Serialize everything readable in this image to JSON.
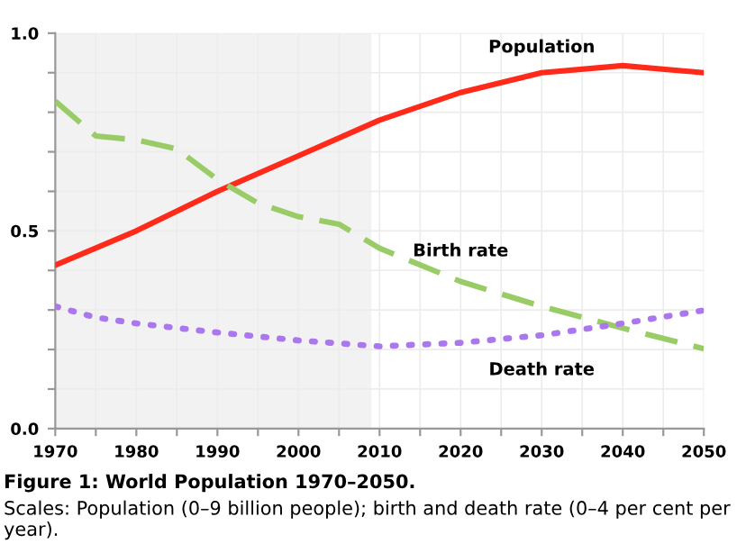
{
  "chart_data": {
    "type": "line",
    "title": "Figure 1: World Population 1970–2050.",
    "subtitle": "Scales: Population (0–9 billion people); birth and death rate (0–4 per cent per year).",
    "relative": false,
    "series": [
      {
        "name": "Population",
        "color": "#ff2a1a",
        "line_style": "solid",
        "x": [
          1970,
          1980,
          1990,
          2000,
          2010,
          2020,
          2030,
          2040,
          2050
        ],
        "values": [
          0.413,
          0.5,
          0.6,
          0.69,
          0.78,
          0.85,
          0.9,
          0.918,
          0.9
        ]
      },
      {
        "name": "Birth rate",
        "color": "#99cc66",
        "line_style": "dashed",
        "x": [
          1970,
          1975,
          1980,
          1985,
          1990,
          1995,
          2000,
          2005,
          2010,
          2020,
          2030,
          2040,
          2050
        ],
        "values": [
          0.828,
          0.74,
          0.73,
          0.707,
          0.63,
          0.57,
          0.536,
          0.517,
          0.456,
          0.372,
          0.309,
          0.254,
          0.202
        ]
      },
      {
        "name": "Death rate",
        "color": "#aa77ee",
        "line_style": "dotted",
        "x": [
          1970,
          1975,
          1980,
          1990,
          2000,
          2010,
          2020,
          2030,
          2040,
          2050
        ],
        "values": [
          0.309,
          0.281,
          0.266,
          0.243,
          0.223,
          0.208,
          0.217,
          0.236,
          0.266,
          0.299
        ]
      }
    ],
    "bands": [
      {
        "axis": "x",
        "from": 1970,
        "to": 2009,
        "color": "#f2f2f2"
      }
    ],
    "xlim": [
      1970,
      2050
    ],
    "xticks": [
      1970,
      {
        "value": 1975,
        "label": null
      },
      1980,
      {
        "value": 1985,
        "label": null
      },
      1990,
      {
        "value": 1995,
        "label": null
      },
      2000,
      {
        "value": 2005,
        "label": null
      },
      2010,
      {
        "value": 2015,
        "label": null
      },
      2020,
      {
        "value": 2025,
        "label": null
      },
      2030,
      {
        "value": 2035,
        "label": null
      },
      2040,
      {
        "value": 2045,
        "label": null
      },
      2050
    ],
    "ylim": [
      0,
      1
    ],
    "yticks": [
      {
        "value": 0,
        "label": "0.0"
      },
      {
        "value": 0.1,
        "label": null
      },
      {
        "value": 0.2,
        "label": null
      },
      {
        "value": 0.3,
        "label": null
      },
      {
        "value": 0.4,
        "label": null
      },
      0.5,
      {
        "value": 0.6,
        "label": null
      },
      {
        "value": 0.7,
        "label": null
      },
      {
        "value": 0.8,
        "label": null
      },
      {
        "value": 0.9,
        "label": null
      },
      {
        "value": 1,
        "label": "1.0"
      }
    ],
    "grid": true,
    "legend": false,
    "marker": "none"
  }
}
